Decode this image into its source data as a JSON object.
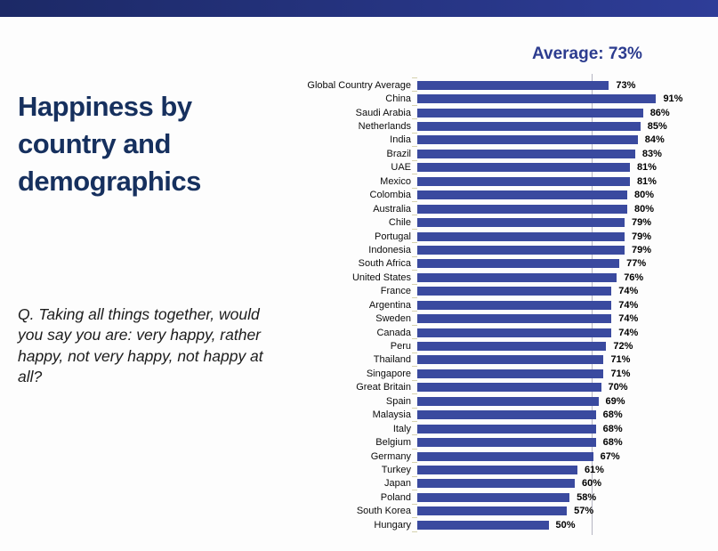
{
  "title": "Happiness by country and demographics",
  "question": "Q. Taking all things together, would you say you are: very happy, rather happy, not very happy, not happy at all?",
  "average_label": "Average: 73%",
  "chart_data": {
    "type": "bar",
    "orientation": "horizontal",
    "title": "Happiness by country and demographics",
    "unit": "%",
    "average": 73,
    "xlim": [
      0,
      100
    ],
    "grid": false,
    "legend": false,
    "bar_color": "#3a4a9f",
    "categories": [
      "Global Country Average",
      "China",
      "Saudi Arabia",
      "Netherlands",
      "India",
      "Brazil",
      "UAE",
      "Mexico",
      "Colombia",
      "Australia",
      "Chile",
      "Portugal",
      "Indonesia",
      "South Africa",
      "United States",
      "France",
      "Argentina",
      "Sweden",
      "Canada",
      "Peru",
      "Thailand",
      "Singapore",
      "Great Britain",
      "Spain",
      "Malaysia",
      "Italy",
      "Belgium",
      "Germany",
      "Turkey",
      "Japan",
      "Poland",
      "South Korea",
      "Hungary"
    ],
    "values": [
      73,
      91,
      86,
      85,
      84,
      83,
      81,
      81,
      80,
      80,
      79,
      79,
      79,
      77,
      76,
      74,
      74,
      74,
      74,
      72,
      71,
      71,
      70,
      69,
      68,
      68,
      68,
      67,
      61,
      60,
      58,
      57,
      50
    ]
  }
}
